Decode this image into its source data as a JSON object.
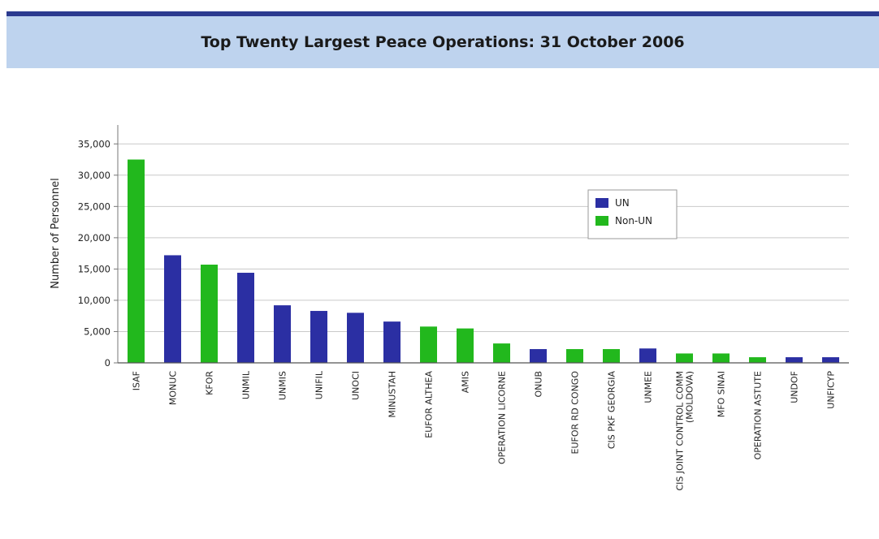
{
  "chart_data": {
    "type": "bar",
    "title": "Top Twenty Largest Peace Operations: 31 October 2006",
    "ylabel": "Number of Personnel",
    "xlabel": "",
    "ylim": [
      0,
      37500
    ],
    "yticks": [
      0,
      5000,
      10000,
      15000,
      20000,
      25000,
      30000,
      35000
    ],
    "ytick_labels": [
      "0",
      "5,000",
      "10,000",
      "15,000",
      "20,000",
      "25,000",
      "30,000",
      "35,000"
    ],
    "grid": true,
    "legend_position": "top-right",
    "colors": {
      "UN": "#2b2fa3",
      "Non-UN": "#22b81d"
    },
    "legend": [
      {
        "name": "UN",
        "color": "#2b2fa3"
      },
      {
        "name": "Non-UN",
        "color": "#22b81d"
      }
    ],
    "categories": [
      "ISAF",
      "MONUC",
      "KFOR",
      "UNMIL",
      "UNMIS",
      "UNIFIL",
      "UNOCI",
      "MINUSTAH",
      "EUFOR ALTHEA",
      "AMIS",
      "OPERATION LICORNE",
      "ONUB",
      "EUFOR RD CONGO",
      "CIS PKF GEORGIA",
      "UNMEE",
      "CIS JOINT CONTROL COMM (MOLDOVA)",
      "MFO SINAI",
      "OPERATION ASTUTE",
      "UNDOF",
      "UNFICYP"
    ],
    "values": [
      32500,
      17200,
      15700,
      14400,
      9200,
      8300,
      8000,
      6600,
      5800,
      5500,
      3100,
      2200,
      2200,
      2200,
      2300,
      1500,
      1500,
      900,
      900,
      900
    ],
    "groups": [
      "Non-UN",
      "UN",
      "Non-UN",
      "UN",
      "UN",
      "UN",
      "UN",
      "UN",
      "Non-UN",
      "Non-UN",
      "Non-UN",
      "UN",
      "Non-UN",
      "Non-UN",
      "UN",
      "Non-UN",
      "Non-UN",
      "Non-UN",
      "UN",
      "UN"
    ]
  }
}
